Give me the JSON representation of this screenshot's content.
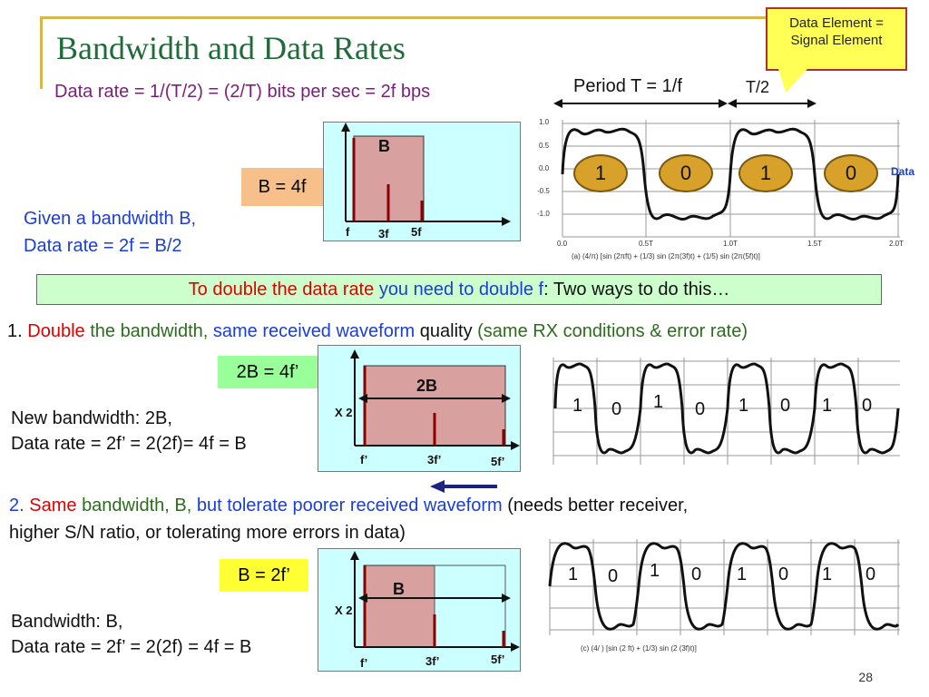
{
  "slide": {
    "title": "Bandwidth and Data Rates",
    "page_number": "28",
    "callout": {
      "line1": "Data Element =",
      "line2": "Signal Element"
    },
    "rate_line": "Data rate = 1/(T/2)  = (2/T) bits per sec = 2f bps",
    "period_label": "Period T = 1/f",
    "half_period_label": "T/2",
    "data_label": "Data",
    "b_eq_4f": "B = 4f",
    "given_line1": "Given a bandwidth B,",
    "given_line2": "Data rate = 2f = B/2",
    "top_spectrum": {
      "box_label": "B",
      "f": "f",
      "f3": "3f",
      "f5": "5f"
    },
    "top_bits": [
      "1",
      "0",
      "1",
      "0"
    ],
    "top_wave_caption": "(a) (4/π) [sin (2πft) + (1/3) sin (2π(3f)t) + (1/5) sin (2π(5f)t)]",
    "top_axis": {
      "y": [
        "1.0",
        "0.5",
        "0.0",
        "-0.5",
        "-1.0"
      ],
      "x": [
        "0.0",
        "0.5T",
        "1.0T",
        "1.5T",
        "2.0T"
      ]
    },
    "banner": {
      "part1": "To double the data rate",
      "part2": "you need to double f",
      "part3": ": Two ways to do this…"
    },
    "way1": {
      "num": "1.",
      "w1": "Double",
      "w2": "the bandwidth,",
      "w3": "same received waveform",
      "w4": "quality",
      "w5": "(same RX conditions & error rate)"
    },
    "two_b_eq": "2B = 4f’",
    "mid_spectrum": {
      "box_label": "2B",
      "x2": "X 2",
      "f": "f’",
      "f3": "3f’",
      "f5": "5f’"
    },
    "new_bw_line1": "New bandwidth: 2B,",
    "new_bw_line2": "Data rate = 2f’ = 2(2f)= 4f = B",
    "mid_bits": [
      "1",
      "0",
      "1",
      "0",
      "1",
      "0",
      "1",
      "0"
    ],
    "way2": {
      "num": "2.",
      "w1": "Same",
      "w2": "bandwidth, B,",
      "w3": "but tolerate poorer received waveform",
      "w4": "(needs better receiver,",
      "line2": "higher S/N ratio, or tolerating more errors in data)"
    },
    "b_eq_2f": "B = 2f’",
    "bot_spectrum": {
      "box_label": "B",
      "x2": "X 2",
      "f": "f’",
      "f3": "3f’",
      "f5": "5f’"
    },
    "bw_line1": "Bandwidth: B,",
    "bw_line2": "Data rate = 2f’ = 2(2f) = 4f = B",
    "bot_bits": [
      "1",
      "0",
      "1",
      "0",
      "1",
      "0",
      "1",
      "0"
    ],
    "bot_wave_caption": "(c) (4/ ) [sin (2 ft) + (1/3) sin (2 (3f)t)]"
  },
  "colors": {
    "title": "#1f6b3a",
    "purple": "#7a1f7a",
    "blue": "#1a3ed6",
    "red": "#e00000",
    "callout": "#ffff55",
    "spectrum_bg": "#ccffff",
    "band_fill": "#d9a0a0",
    "circle": "#d8a12a"
  }
}
